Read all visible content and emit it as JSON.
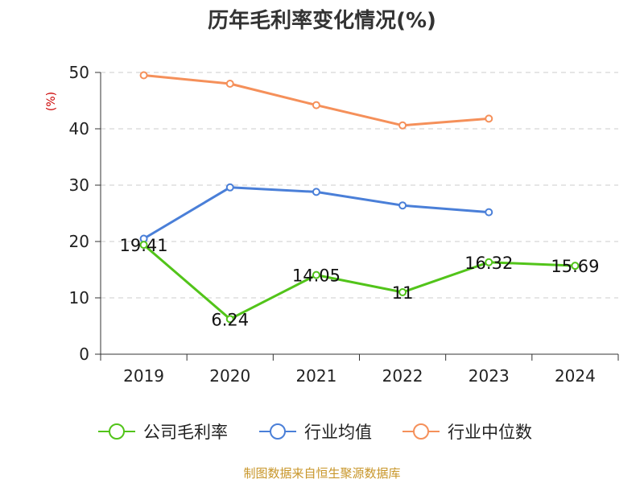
{
  "chart_data": {
    "type": "line",
    "title": "历年毛利率变化情况(%)",
    "ylabel": "(%)",
    "categories": [
      "2019",
      "2020",
      "2021",
      "2022",
      "2023",
      "2024"
    ],
    "ylim": [
      0,
      50
    ],
    "yticks": [
      0,
      10,
      20,
      30,
      40,
      50
    ],
    "grid": true,
    "legend_position": "bottom",
    "series": [
      {
        "name": "公司毛利率",
        "color": "#52c41a",
        "values": [
          19.41,
          6.24,
          14.05,
          11,
          16.32,
          15.69
        ],
        "labels": [
          "19.41",
          "6.24",
          "14.05",
          "11",
          "16.32",
          "15.69"
        ]
      },
      {
        "name": "行业均值",
        "color": "#4a7fd8",
        "values": [
          20.5,
          29.6,
          28.8,
          26.4,
          25.2,
          null
        ]
      },
      {
        "name": "行业中位数",
        "color": "#f5905a",
        "values": [
          49.5,
          48.0,
          44.2,
          40.6,
          41.8,
          null
        ]
      }
    ]
  },
  "source": "制图数据来自恒生聚源数据库"
}
